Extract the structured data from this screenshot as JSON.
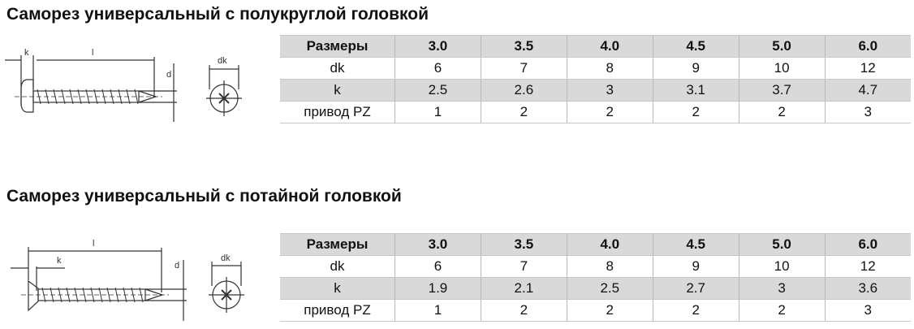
{
  "sections": [
    {
      "title": "Саморез универсальный с полукруглой головкой",
      "diagram": {
        "labels": {
          "k": "k",
          "l": "l",
          "d": "d",
          "dk": "dk"
        }
      },
      "table": {
        "header": [
          "Размеры",
          "3.0",
          "3.5",
          "4.0",
          "4.5",
          "5.0",
          "6.0"
        ],
        "rows": [
          [
            "dk",
            "6",
            "7",
            "8",
            "9",
            "10",
            "12"
          ],
          [
            "k",
            "2.5",
            "2.6",
            "3",
            "3.1",
            "3.7",
            "4.7"
          ],
          [
            "привод PZ",
            "1",
            "2",
            "2",
            "2",
            "2",
            "3"
          ]
        ]
      }
    },
    {
      "title": "Саморез универсальный с потайной головкой",
      "diagram": {
        "labels": {
          "k": "k",
          "l": "l",
          "d": "d",
          "dk": "dk"
        }
      },
      "table": {
        "header": [
          "Размеры",
          "3.0",
          "3.5",
          "4.0",
          "4.5",
          "5.0",
          "6.0"
        ],
        "rows": [
          [
            "dk",
            "6",
            "7",
            "8",
            "9",
            "10",
            "12"
          ],
          [
            "k",
            "1.9",
            "2.1",
            "2.5",
            "2.7",
            "3",
            "3.6"
          ],
          [
            "привод PZ",
            "1",
            "2",
            "2",
            "2",
            "2",
            "3"
          ]
        ]
      }
    }
  ],
  "colors": {
    "header_bg": "#d9d9d9",
    "text": "#111111"
  }
}
